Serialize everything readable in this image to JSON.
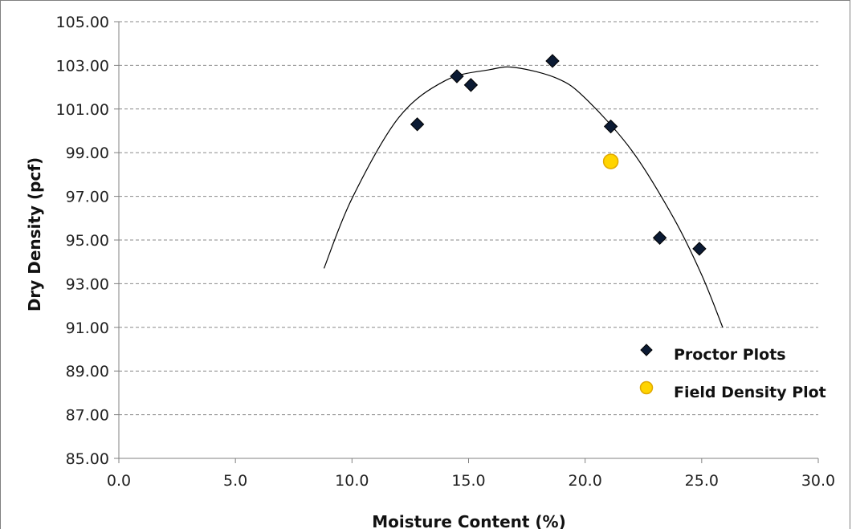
{
  "chart_data": {
    "type": "scatter",
    "xlabel": "Moisture Content (%)",
    "ylabel": "Dry Density (pcf)",
    "xlim": [
      0,
      30
    ],
    "ylim": [
      85,
      105
    ],
    "x_ticks": [
      "0.0",
      "5.0",
      "10.0",
      "15.0",
      "20.0",
      "25.0",
      "30.0"
    ],
    "y_ticks": [
      "85.00",
      "87.00",
      "89.00",
      "91.00",
      "93.00",
      "95.00",
      "97.00",
      "99.00",
      "101.00",
      "103.00",
      "105.00"
    ],
    "grid": "horizontal dashed",
    "legend_position": "lower-right",
    "series": [
      {
        "name": "Proctor Plots",
        "marker": "diamond",
        "color": "#0b1a33",
        "points": [
          {
            "x": 12.8,
            "y": 100.3
          },
          {
            "x": 14.5,
            "y": 102.5
          },
          {
            "x": 15.1,
            "y": 102.1
          },
          {
            "x": 18.6,
            "y": 103.2
          },
          {
            "x": 21.1,
            "y": 100.2
          },
          {
            "x": 23.2,
            "y": 95.1
          },
          {
            "x": 24.9,
            "y": 94.6
          }
        ]
      },
      {
        "name": "Field Density Plot",
        "marker": "circle",
        "color": "#ffd400",
        "edge_color": "#e0a800",
        "points": [
          {
            "x": 21.1,
            "y": 98.6
          }
        ]
      }
    ],
    "trendline": {
      "type": "polynomial",
      "color": "#000000",
      "points": [
        {
          "x": 8.8,
          "y": 93.7
        },
        {
          "x": 10.0,
          "y": 96.9
        },
        {
          "x": 12.0,
          "y": 100.6
        },
        {
          "x": 14.0,
          "y": 102.3
        },
        {
          "x": 15.9,
          "y": 102.8
        },
        {
          "x": 17.0,
          "y": 102.9
        },
        {
          "x": 18.8,
          "y": 102.4
        },
        {
          "x": 20.0,
          "y": 101.5
        },
        {
          "x": 22.0,
          "y": 99.1
        },
        {
          "x": 23.8,
          "y": 96.0
        },
        {
          "x": 25.0,
          "y": 93.4
        },
        {
          "x": 25.9,
          "y": 91.0
        }
      ]
    }
  }
}
